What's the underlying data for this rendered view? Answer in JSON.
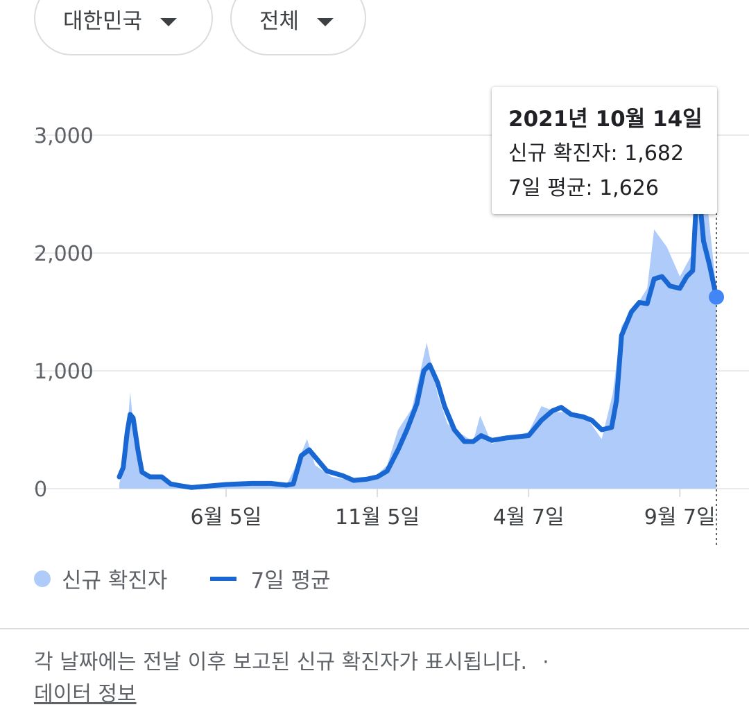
{
  "filters": {
    "country": "대한민국",
    "scope": "전체"
  },
  "tooltip": {
    "date": "2021년 10월 14일",
    "new_cases_label": "신규 확진자",
    "new_cases_value": "1,682",
    "avg_label": "7일 평균",
    "avg_value": "1,626"
  },
  "legend": {
    "bars_label": "신규 확진자",
    "line_label": "7일 평균"
  },
  "footnote": {
    "text": "각 날짜에는 전날 이후 보고된 신규 확진자가 표시됩니다.",
    "separator": "·",
    "link": "데이터 정보"
  },
  "colors": {
    "bars": "#aecbfa",
    "line": "#1967d2",
    "highlight_dot": "#4285f4"
  },
  "chart_data": {
    "type": "area",
    "series": [
      {
        "name": "신규 확진자",
        "kind": "daily_bars",
        "points": [
          [
            "2020-02-18",
            40
          ],
          [
            "2020-02-22",
            200
          ],
          [
            "2020-02-26",
            480
          ],
          [
            "2020-02-29",
            820
          ],
          [
            "2020-03-03",
            560
          ],
          [
            "2020-03-08",
            260
          ],
          [
            "2020-03-12",
            110
          ],
          [
            "2020-03-20",
            100
          ],
          [
            "2020-04-01",
            90
          ],
          [
            "2020-04-15",
            30
          ],
          [
            "2020-05-01",
            10
          ],
          [
            "2020-05-15",
            15
          ],
          [
            "2020-06-05",
            40
          ],
          [
            "2020-07-01",
            50
          ],
          [
            "2020-07-20",
            40
          ],
          [
            "2020-08-05",
            30
          ],
          [
            "2020-08-15",
            200
          ],
          [
            "2020-08-26",
            420
          ],
          [
            "2020-09-03",
            200
          ],
          [
            "2020-09-20",
            100
          ],
          [
            "2020-10-10",
            70
          ],
          [
            "2020-10-25",
            90
          ],
          [
            "2020-11-05",
            120
          ],
          [
            "2020-11-15",
            200
          ],
          [
            "2020-11-26",
            500
          ],
          [
            "2020-12-10",
            680
          ],
          [
            "2020-12-20",
            1050
          ],
          [
            "2020-12-25",
            1240
          ],
          [
            "2021-01-05",
            800
          ],
          [
            "2021-01-15",
            550
          ],
          [
            "2021-01-28",
            470
          ],
          [
            "2021-02-10",
            400
          ],
          [
            "2021-02-17",
            620
          ],
          [
            "2021-03-01",
            380
          ],
          [
            "2021-03-15",
            430
          ],
          [
            "2021-04-07",
            480
          ],
          [
            "2021-04-20",
            700
          ],
          [
            "2021-05-05",
            650
          ],
          [
            "2021-05-20",
            650
          ],
          [
            "2021-06-05",
            600
          ],
          [
            "2021-06-20",
            420
          ],
          [
            "2021-07-01",
            800
          ],
          [
            "2021-07-10",
            1380
          ],
          [
            "2021-07-25",
            1550
          ],
          [
            "2021-08-05",
            1700
          ],
          [
            "2021-08-12",
            2200
          ],
          [
            "2021-08-25",
            2050
          ],
          [
            "2021-09-07",
            1800
          ],
          [
            "2021-09-20",
            2000
          ],
          [
            "2021-09-25",
            3270
          ],
          [
            "2021-10-05",
            2400
          ],
          [
            "2021-10-14",
            1682
          ]
        ]
      },
      {
        "name": "7일 평균",
        "kind": "line",
        "points": [
          [
            "2020-02-18",
            100
          ],
          [
            "2020-02-22",
            180
          ],
          [
            "2020-02-26",
            480
          ],
          [
            "2020-02-29",
            630
          ],
          [
            "2020-03-03",
            600
          ],
          [
            "2020-03-08",
            320
          ],
          [
            "2020-03-12",
            140
          ],
          [
            "2020-03-20",
            100
          ],
          [
            "2020-04-01",
            100
          ],
          [
            "2020-04-10",
            40
          ],
          [
            "2020-04-20",
            25
          ],
          [
            "2020-05-01",
            10
          ],
          [
            "2020-05-15",
            20
          ],
          [
            "2020-06-05",
            35
          ],
          [
            "2020-07-01",
            45
          ],
          [
            "2020-07-20",
            45
          ],
          [
            "2020-08-05",
            30
          ],
          [
            "2020-08-12",
            40
          ],
          [
            "2020-08-20",
            280
          ],
          [
            "2020-08-28",
            330
          ],
          [
            "2020-09-05",
            250
          ],
          [
            "2020-09-15",
            150
          ],
          [
            "2020-10-01",
            110
          ],
          [
            "2020-10-12",
            70
          ],
          [
            "2020-10-25",
            80
          ],
          [
            "2020-11-05",
            100
          ],
          [
            "2020-11-15",
            150
          ],
          [
            "2020-11-26",
            330
          ],
          [
            "2020-12-05",
            500
          ],
          [
            "2020-12-15",
            720
          ],
          [
            "2020-12-22",
            1000
          ],
          [
            "2020-12-28",
            1050
          ],
          [
            "2021-01-05",
            900
          ],
          [
            "2021-01-12",
            700
          ],
          [
            "2021-01-22",
            500
          ],
          [
            "2021-02-01",
            400
          ],
          [
            "2021-02-10",
            400
          ],
          [
            "2021-02-18",
            450
          ],
          [
            "2021-03-01",
            410
          ],
          [
            "2021-03-15",
            430
          ],
          [
            "2021-04-07",
            450
          ],
          [
            "2021-04-20",
            580
          ],
          [
            "2021-05-01",
            660
          ],
          [
            "2021-05-10",
            690
          ],
          [
            "2021-05-20",
            630
          ],
          [
            "2021-06-01",
            610
          ],
          [
            "2021-06-10",
            580
          ],
          [
            "2021-06-20",
            500
          ],
          [
            "2021-06-30",
            520
          ],
          [
            "2021-07-05",
            750
          ],
          [
            "2021-07-10",
            1300
          ],
          [
            "2021-07-20",
            1500
          ],
          [
            "2021-07-28",
            1580
          ],
          [
            "2021-08-05",
            1570
          ],
          [
            "2021-08-12",
            1780
          ],
          [
            "2021-08-20",
            1800
          ],
          [
            "2021-08-28",
            1720
          ],
          [
            "2021-09-07",
            1700
          ],
          [
            "2021-09-14",
            1800
          ],
          [
            "2021-09-20",
            1850
          ],
          [
            "2021-09-25",
            2650
          ],
          [
            "2021-10-01",
            2100
          ],
          [
            "2021-10-07",
            1900
          ],
          [
            "2021-10-14",
            1626
          ]
        ]
      }
    ],
    "xlim": [
      "2020-02-18",
      "2021-10-14"
    ],
    "ylim": [
      0,
      3000
    ],
    "y_ticks": [
      0,
      1000,
      2000,
      3000
    ],
    "y_tick_labels": [
      "0",
      "1,000",
      "2,000",
      "3,000"
    ],
    "x_ticks": [
      "2020-06-05",
      "2020-11-05",
      "2021-04-07",
      "2021-09-07"
    ],
    "x_tick_labels": [
      "6월 5일",
      "11월 5일",
      "4월 7일",
      "9월 7일"
    ],
    "grid": true,
    "legend_position": "bottom-left",
    "highlight": "2021-10-14"
  }
}
